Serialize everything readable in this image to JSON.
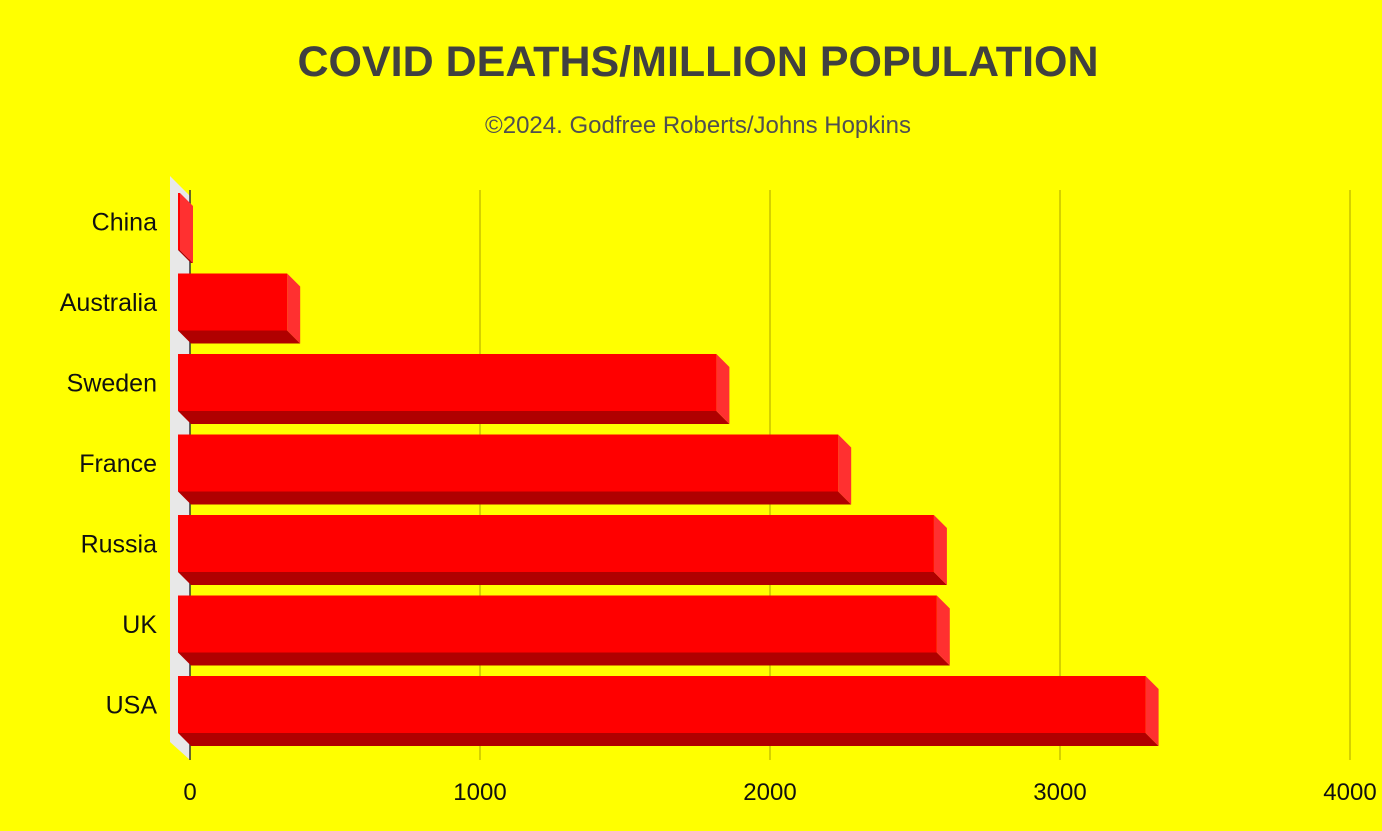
{
  "chart_data": {
    "type": "bar",
    "orientation": "horizontal",
    "title": "COVID DEATHS/MILLION POPULATION",
    "subtitle": "©2024. Godfree Roberts/Johns Hopkins",
    "categories": [
      "China",
      "Australia",
      "Sweden",
      "France",
      "Russia",
      "UK",
      "USA"
    ],
    "values": [
      3,
      380,
      1860,
      2280,
      2610,
      2620,
      3340
    ],
    "xlim": [
      0,
      4000
    ],
    "xticks": [
      "0",
      "1000",
      "2000",
      "3000",
      "4000"
    ],
    "grid": true,
    "legend": "none",
    "colors": {
      "background": "#ffff00",
      "bar_front": "#ff0000",
      "bar_side": "#ff3030",
      "bar_bottom": "#b00000",
      "grid": "#b9b400",
      "title": "#404040"
    }
  }
}
